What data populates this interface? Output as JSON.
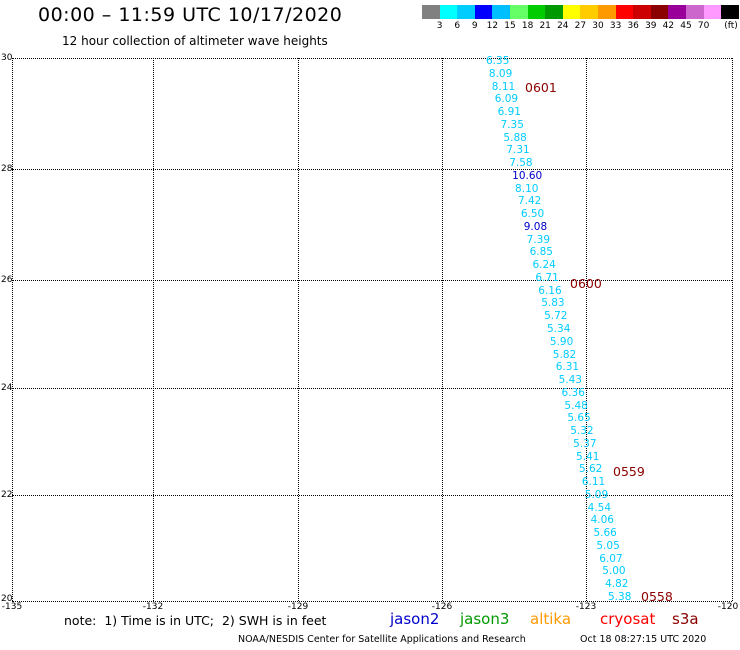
{
  "header": {
    "title": "00:00 – 11:59 UTC 10/17/2020",
    "subtitle": "12 hour collection of altimeter wave heights"
  },
  "legend": {
    "unit_label": "(ft)",
    "items": [
      {
        "label": "",
        "color": "#808080"
      },
      {
        "label": "3",
        "color": "#00ffff"
      },
      {
        "label": "6",
        "color": "#00ccff"
      },
      {
        "label": "9",
        "color": "#0000ff"
      },
      {
        "label": "12",
        "color": "#00bfff"
      },
      {
        "label": "15",
        "color": "#66ff66"
      },
      {
        "label": "18",
        "color": "#00cc00"
      },
      {
        "label": "21",
        "color": "#009900"
      },
      {
        "label": "24",
        "color": "#ffff00"
      },
      {
        "label": "27",
        "color": "#ffcc00"
      },
      {
        "label": "30",
        "color": "#ff9900"
      },
      {
        "label": "33",
        "color": "#ff0000"
      },
      {
        "label": "36",
        "color": "#cc0000"
      },
      {
        "label": "39",
        "color": "#8b0000"
      },
      {
        "label": "42",
        "color": "#990099"
      },
      {
        "label": "45",
        "color": "#cc66cc"
      },
      {
        "label": "70",
        "color": "#ff99ff"
      },
      {
        "label": "",
        "color": "#000000"
      }
    ]
  },
  "map": {
    "lat_labels": [
      "30",
      "28",
      "26",
      "24",
      "22",
      "20"
    ],
    "lon_labels": [
      "-135",
      "-132",
      "-129",
      "-126",
      "-123",
      "-120"
    ],
    "lat_range": [
      20,
      30
    ],
    "lon_range": [
      -135,
      -120
    ]
  },
  "track": {
    "points": [
      {
        "value": "6.35",
        "color": "#00ccff"
      },
      {
        "value": "8.09",
        "color": "#00ccff"
      },
      {
        "value": "8.11",
        "color": "#00ccff"
      },
      {
        "value": "6.09",
        "color": "#00ccff"
      },
      {
        "value": "6.91",
        "color": "#00ccff"
      },
      {
        "value": "7.35",
        "color": "#00ccff"
      },
      {
        "value": "5.88",
        "color": "#00ccff"
      },
      {
        "value": "7.31",
        "color": "#00ccff"
      },
      {
        "value": "7.58",
        "color": "#00ccff"
      },
      {
        "value": "10.60",
        "color": "#0000cc"
      },
      {
        "value": "8.10",
        "color": "#00ccff"
      },
      {
        "value": "7.42",
        "color": "#00ccff"
      },
      {
        "value": "6.50",
        "color": "#00ccff"
      },
      {
        "value": "9.08",
        "color": "#0000cc"
      },
      {
        "value": "7.39",
        "color": "#00ccff"
      },
      {
        "value": "6.85",
        "color": "#00ccff"
      },
      {
        "value": "6.24",
        "color": "#00ccff"
      },
      {
        "value": "6.71",
        "color": "#00ccff"
      },
      {
        "value": "6.16",
        "color": "#00ccff"
      },
      {
        "value": "5.83",
        "color": "#00ccff"
      },
      {
        "value": "5.72",
        "color": "#00ccff"
      },
      {
        "value": "5.34",
        "color": "#00ccff"
      },
      {
        "value": "5.90",
        "color": "#00ccff"
      },
      {
        "value": "5.82",
        "color": "#00ccff"
      },
      {
        "value": "6.31",
        "color": "#00ccff"
      },
      {
        "value": "5.43",
        "color": "#00ccff"
      },
      {
        "value": "6.36",
        "color": "#00ccff"
      },
      {
        "value": "5.48",
        "color": "#00ccff"
      },
      {
        "value": "5.65",
        "color": "#00ccff"
      },
      {
        "value": "5.32",
        "color": "#00ccff"
      },
      {
        "value": "5.37",
        "color": "#00ccff"
      },
      {
        "value": "5.41",
        "color": "#00ccff"
      },
      {
        "value": "5.62",
        "color": "#00ccff"
      },
      {
        "value": "6.11",
        "color": "#00ccff"
      },
      {
        "value": "5.09",
        "color": "#00ccff"
      },
      {
        "value": "4.54",
        "color": "#00ccff"
      },
      {
        "value": "4.06",
        "color": "#00ccff"
      },
      {
        "value": "5.66",
        "color": "#00ccff"
      },
      {
        "value": "5.05",
        "color": "#00ccff"
      },
      {
        "value": "6.07",
        "color": "#00ccff"
      },
      {
        "value": "5.00",
        "color": "#00ccff"
      },
      {
        "value": "4.82",
        "color": "#00ccff"
      },
      {
        "value": "5.38",
        "color": "#00ccff"
      }
    ],
    "time_labels": [
      "0601",
      "0600",
      "0559",
      "0558"
    ]
  },
  "notes": {
    "note": "note:  1) Time is in UTC;  2) SWH is in feet"
  },
  "satellites": [
    {
      "name": "jason2",
      "color": "#0000cc"
    },
    {
      "name": "jason3",
      "color": "#009900"
    },
    {
      "name": "altika",
      "color": "#ff9900"
    },
    {
      "name": "cryosat",
      "color": "#ff0000"
    },
    {
      "name": "s3a",
      "color": "#8b0000"
    }
  ],
  "footer": {
    "org": "NOAA/NESDIS Center for Satellite Applications and Research",
    "timestamp": "Oct 18 08:27:15 UTC 2020"
  }
}
